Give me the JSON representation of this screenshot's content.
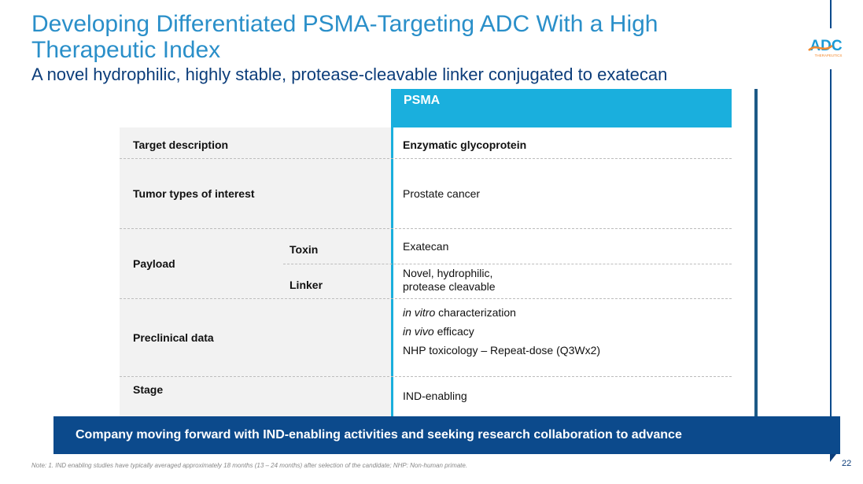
{
  "slide": {
    "title": "Developing Differentiated PSMA-Targeting ADC With a High Therapeutic Index",
    "subtitle": "A novel hydrophilic, highly stable, protease-cleavable linker conjugated to exatecan",
    "logo_text": "ADC",
    "logo_subtext": "THERAPEUTICS",
    "page_number": "22"
  },
  "table": {
    "column_header": "PSMA",
    "rows": [
      {
        "label": "Target description",
        "value": "Enzymatic glycoprotein"
      },
      {
        "label": "Tumor types of interest",
        "value": "Prostate cancer"
      },
      {
        "label": "Payload",
        "sub": [
          {
            "label": "Toxin",
            "value": "Exatecan"
          },
          {
            "label": "Linker",
            "value_line1": "Novel, hydrophilic,",
            "value_line2": "protease cleavable"
          }
        ]
      },
      {
        "label": "Preclinical data",
        "items": [
          {
            "italic": "in vitro",
            "text": " characterization"
          },
          {
            "italic": "in vivo",
            "text": " efficacy"
          },
          {
            "italic": "",
            "text": "NHP toxicology – Repeat-dose (Q3Wx2)"
          }
        ]
      },
      {
        "label": "Stage",
        "value": "IND-enabling"
      }
    ]
  },
  "banner": "Company moving forward with IND-enabling activities and seeking research collaboration to advance",
  "note": "Note:    1. IND enabling studies have typically averaged approximately 18 months (13 – 24 months) after selection of the candidate; NHP: Non-human primate.",
  "colors": {
    "title": "#2a8fc9",
    "header": "#1aafdd",
    "banner": "#0c4a8c",
    "label_bg": "#f2f2f2"
  }
}
